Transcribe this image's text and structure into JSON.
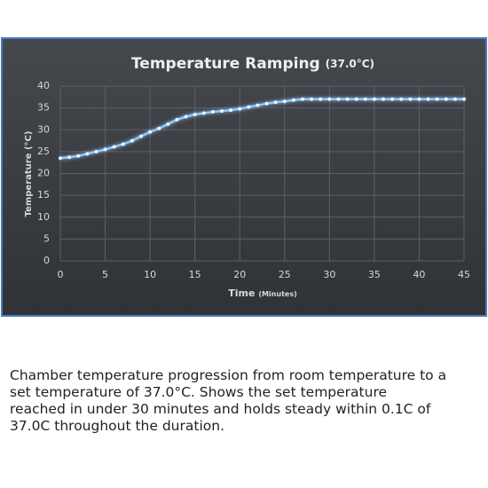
{
  "chart_data": {
    "type": "line",
    "title": "Temperature Ramping",
    "title_note": "(37.0°C)",
    "x_label": "Time",
    "x_label_note": "(Minutes)",
    "y_label": "Temperature (°C)",
    "x": [
      0,
      1,
      2,
      3,
      4,
      5,
      6,
      7,
      8,
      9,
      10,
      11,
      12,
      13,
      14,
      15,
      16,
      17,
      18,
      19,
      20,
      21,
      22,
      23,
      24,
      25,
      26,
      27,
      28,
      29,
      30,
      31,
      32,
      33,
      34,
      35,
      36,
      37,
      38,
      39,
      40,
      41,
      42,
      43,
      44,
      45
    ],
    "series": [
      {
        "color": "#8fcaff",
        "values": [
          23.5,
          23.7,
          24.0,
          24.5,
          25.0,
          25.5,
          26.1,
          26.7,
          27.5,
          28.5,
          29.5,
          30.3,
          31.3,
          32.3,
          33.0,
          33.5,
          33.8,
          34.1,
          34.3,
          34.5,
          34.8,
          35.2,
          35.6,
          36.0,
          36.3,
          36.5,
          36.8,
          37.0,
          37.0,
          37.0,
          37.0,
          37.0,
          37.0,
          37.0,
          37.0,
          37.0,
          37.0,
          37.0,
          37.0,
          37.0,
          37.0,
          37.0,
          37.0,
          37.0,
          37.0,
          37.0
        ]
      }
    ],
    "xlim": [
      0,
      45
    ],
    "xticks": [
      0,
      5,
      10,
      15,
      20,
      25,
      30,
      35,
      40,
      45
    ],
    "ylim": [
      0,
      40
    ],
    "yticks": [
      0,
      5,
      10,
      15,
      20,
      25,
      30,
      35,
      40
    ],
    "grid": true
  },
  "caption": [
    "Chamber temperature progression from room temperature to a",
    "set temperature of 37.0°C. Shows the set temperature",
    "reached in under 30 minutes and holds steady within 0.1C of",
    "37.0C throughout the duration."
  ]
}
